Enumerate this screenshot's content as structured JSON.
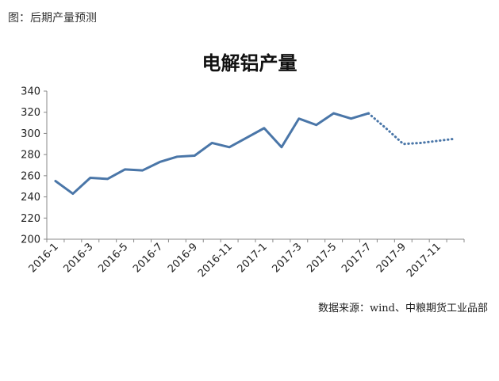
{
  "caption": "图：后期产量预测",
  "source": "数据来源：wind、中粮期货工业品部",
  "colors": {
    "series": "#4a76a8",
    "axis": "#888888"
  },
  "chart_data": {
    "type": "line",
    "title": "电解铝产量",
    "xlabel": "",
    "ylabel": "",
    "ylim": [
      200,
      340
    ],
    "yticks": [
      200,
      220,
      240,
      260,
      280,
      300,
      320,
      340
    ],
    "grid": false,
    "x": [
      "2016-1",
      "2016-2",
      "2016-3",
      "2016-4",
      "2016-5",
      "2016-6",
      "2016-7",
      "2016-8",
      "2016-9",
      "2016-10",
      "2016-11",
      "2016-12",
      "2017-1",
      "2017-2",
      "2017-3",
      "2017-4",
      "2017-5",
      "2017-6",
      "2017-7",
      "2017-8",
      "2017-9",
      "2017-10",
      "2017-11",
      "2017-12"
    ],
    "x_tick_labels": [
      "2016-1",
      "2016-3",
      "2016-5",
      "2016-7",
      "2016-9",
      "2016-11",
      "2017-1",
      "2017-3",
      "2017-5",
      "2017-7",
      "2017-9",
      "2017-11"
    ],
    "series": [
      {
        "style": "solid",
        "values": [
          255,
          243,
          258,
          257,
          266,
          265,
          273,
          278,
          279,
          291,
          287,
          296,
          305,
          287,
          314,
          308,
          319,
          314,
          319,
          null,
          null,
          null,
          null,
          null
        ]
      },
      {
        "style": "dotted",
        "values": [
          null,
          null,
          null,
          null,
          null,
          null,
          null,
          null,
          null,
          null,
          null,
          null,
          null,
          null,
          null,
          null,
          null,
          null,
          319,
          305,
          290,
          291,
          293,
          295
        ]
      }
    ]
  }
}
